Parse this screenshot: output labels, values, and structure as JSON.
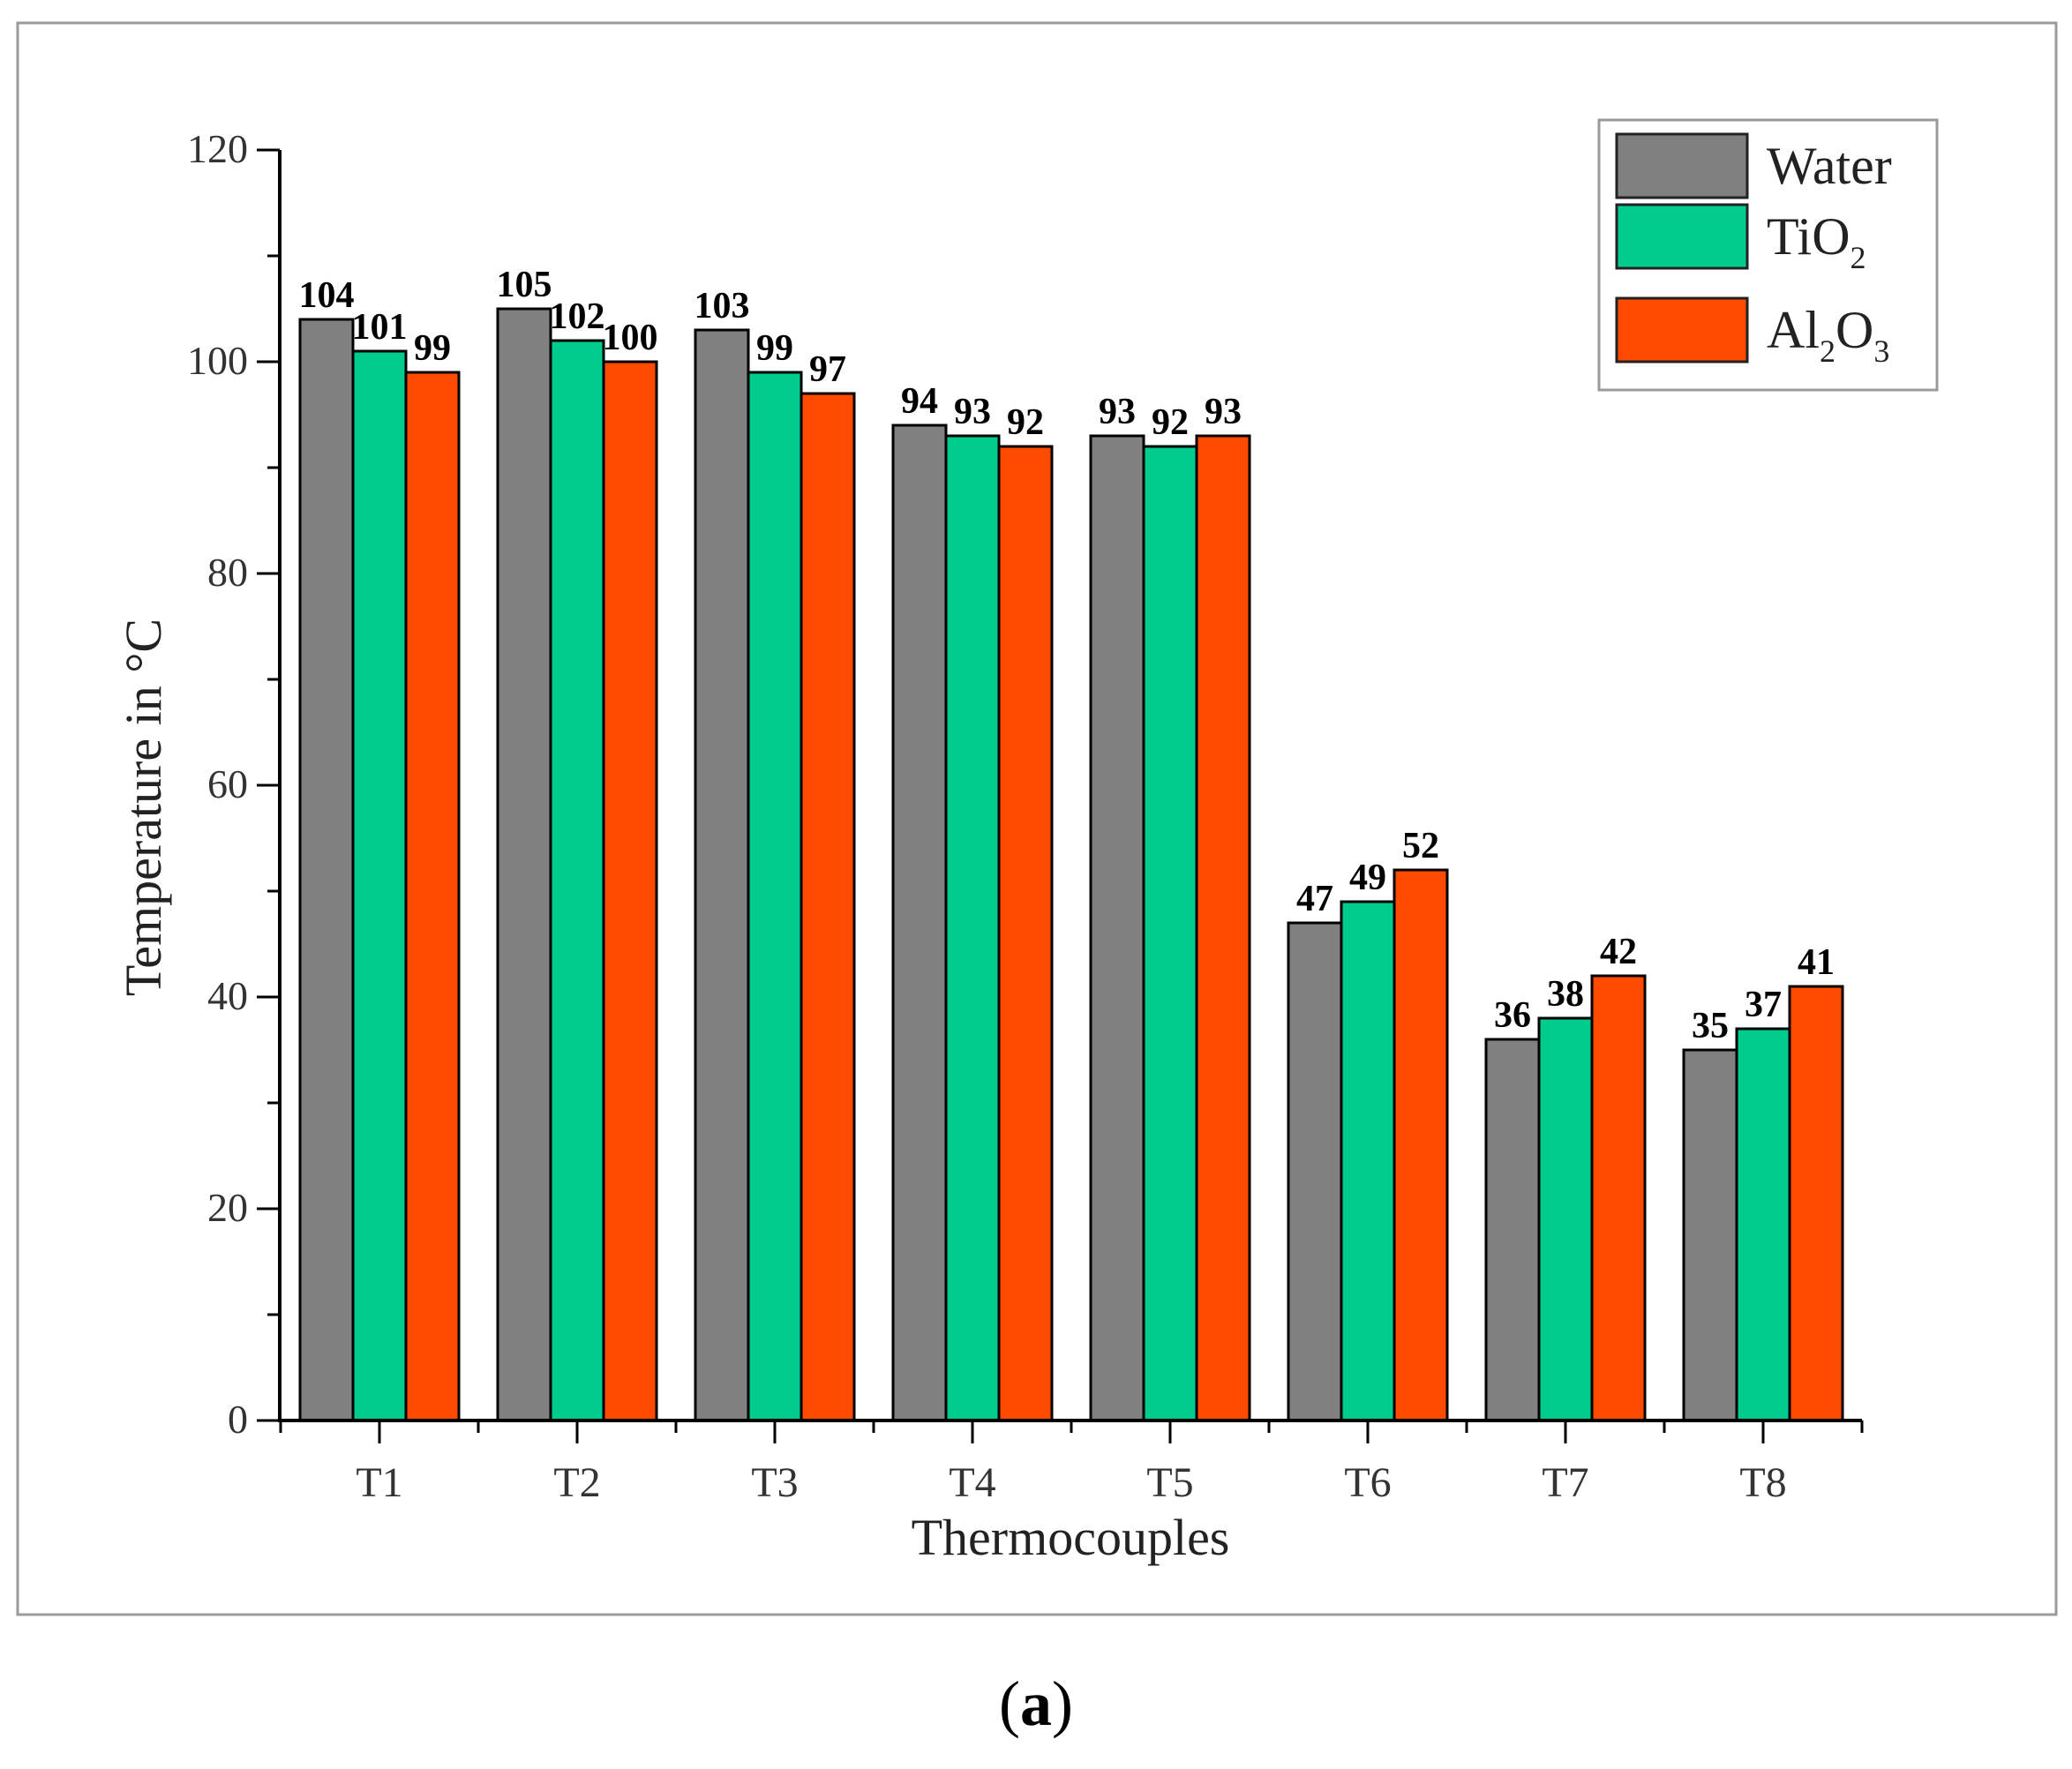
{
  "chart_data": {
    "type": "bar",
    "xlabel": "Thermocouples",
    "ylabel": "Temperature in °C",
    "ylim": [
      0,
      120
    ],
    "yticks": [
      0,
      20,
      40,
      60,
      80,
      100,
      120
    ],
    "categories": [
      "T1",
      "T2",
      "T3",
      "T4",
      "T5",
      "T6",
      "T7",
      "T8"
    ],
    "series": [
      {
        "name": "Water",
        "color": "#808080",
        "values": [
          104,
          105,
          103,
          94,
          93,
          47,
          36,
          35
        ]
      },
      {
        "name": "TiO2",
        "color": "#00cc8e",
        "values": [
          101,
          102,
          99,
          93,
          92,
          49,
          38,
          37
        ]
      },
      {
        "name": "Al2O3",
        "color": "#ff4a00",
        "values": [
          99,
          100,
          97,
          92,
          93,
          52,
          42,
          41
        ]
      }
    ],
    "legend": {
      "position": "top-right",
      "entries": [
        {
          "parts": [
            [
              "Water",
              ""
            ]
          ]
        },
        {
          "parts": [
            [
              "TiO",
              ""
            ],
            [
              "2",
              "sub"
            ]
          ]
        },
        {
          "parts": [
            [
              "Al",
              ""
            ],
            [
              "2",
              "sub"
            ],
            [
              "O",
              ""
            ],
            [
              "3",
              "sub"
            ]
          ]
        }
      ]
    },
    "data_labels": true,
    "grid": false
  },
  "caption": {
    "open": "(",
    "letter": "a",
    "close": ")"
  }
}
